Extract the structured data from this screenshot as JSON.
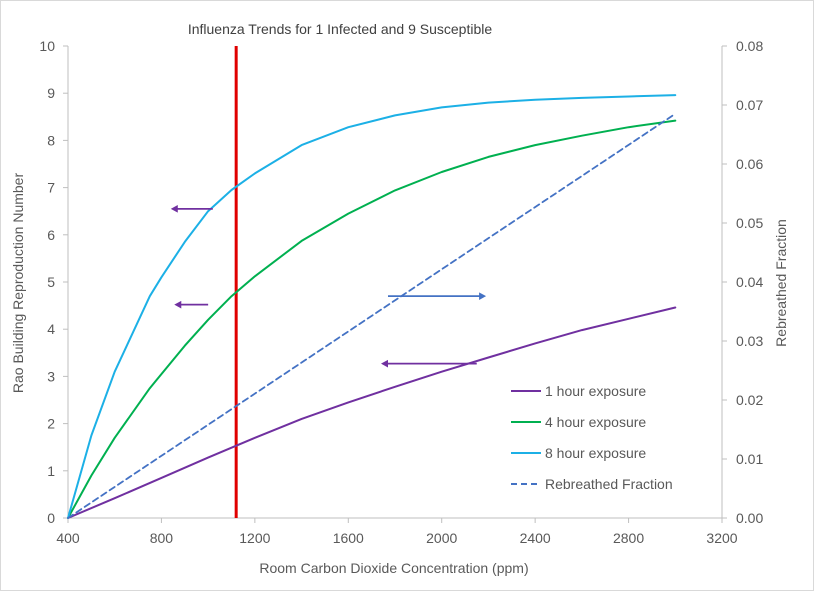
{
  "chart_data": {
    "type": "line",
    "title": "Influenza Trends for 1 Infected and 9 Susceptible",
    "xlabel": "Room Carbon Dioxide Concentration (ppm)",
    "ylabel": "Rao Building Reproduction Number",
    "y2label": "Rebreathed Fraction",
    "xlim": [
      400,
      3200
    ],
    "ylim": [
      0,
      10
    ],
    "y2lim": [
      0,
      0.08
    ],
    "x_ticks": [
      "400",
      "800",
      "1200",
      "1600",
      "2000",
      "2400",
      "2800",
      "3200"
    ],
    "y_ticks": [
      "0",
      "1",
      "2",
      "3",
      "4",
      "5",
      "6",
      "7",
      "8",
      "9",
      "10"
    ],
    "y2_ticks": [
      "0.00",
      "0.01",
      "0.02",
      "0.03",
      "0.04",
      "0.05",
      "0.06",
      "0.07",
      "0.08"
    ],
    "grid": false,
    "legend": "bottom-right",
    "series": [
      {
        "name": "1 hour exposure",
        "axis": "left",
        "style": "solid",
        "color": "#7030a0",
        "x": [
          400,
          600,
          800,
          1000,
          1200,
          1400,
          1600,
          1800,
          2000,
          2200,
          2400,
          2600,
          2800,
          3000
        ],
        "y": [
          0,
          0.42,
          0.85,
          1.28,
          1.7,
          2.1,
          2.45,
          2.78,
          3.1,
          3.4,
          3.7,
          3.98,
          4.22,
          4.46
        ]
      },
      {
        "name": "4 hour exposure",
        "axis": "left",
        "style": "solid",
        "color": "#00b050",
        "x": [
          400,
          500,
          600,
          750,
          900,
          1000,
          1100,
          1200,
          1400,
          1600,
          1800,
          2000,
          2200,
          2400,
          2600,
          2800,
          3000
        ],
        "y": [
          0,
          0.9,
          1.7,
          2.75,
          3.65,
          4.2,
          4.7,
          5.12,
          5.87,
          6.45,
          6.94,
          7.33,
          7.65,
          7.9,
          8.1,
          8.28,
          8.42
        ]
      },
      {
        "name": "8 hour exposure",
        "axis": "left",
        "style": "solid",
        "color": "#1cb0e6",
        "x": [
          400,
          500,
          600,
          750,
          800,
          900,
          1000,
          1100,
          1200,
          1400,
          1600,
          1800,
          2000,
          2200,
          2400,
          2600,
          2800,
          3000
        ],
        "y": [
          0,
          1.75,
          3.1,
          4.7,
          5.1,
          5.85,
          6.5,
          6.95,
          7.3,
          7.9,
          8.28,
          8.53,
          8.7,
          8.8,
          8.86,
          8.9,
          8.93,
          8.96
        ]
      },
      {
        "name": "Rebreathed Fraction",
        "axis": "right",
        "style": "dashed",
        "color": "#4472c4",
        "x": [
          400,
          3000
        ],
        "y": [
          0,
          0.0685
        ]
      }
    ],
    "reference_line": {
      "x": 1120,
      "color": "#e00000"
    },
    "annotations": [
      {
        "type": "arrow",
        "direction": "left",
        "color": "#7030a0",
        "x_from": 1020,
        "x_to": 840,
        "y": 6.55
      },
      {
        "type": "arrow",
        "direction": "left",
        "color": "#7030a0",
        "x_from": 1000,
        "x_to": 855,
        "y": 4.52
      },
      {
        "type": "arrow",
        "direction": "left",
        "color": "#7030a0",
        "x_from": 2150,
        "x_to": 1740,
        "y": 3.27
      },
      {
        "type": "arrow",
        "direction": "right",
        "color": "#4472c4",
        "x_from": 1770,
        "x_to": 2190,
        "y": 4.7
      }
    ]
  }
}
